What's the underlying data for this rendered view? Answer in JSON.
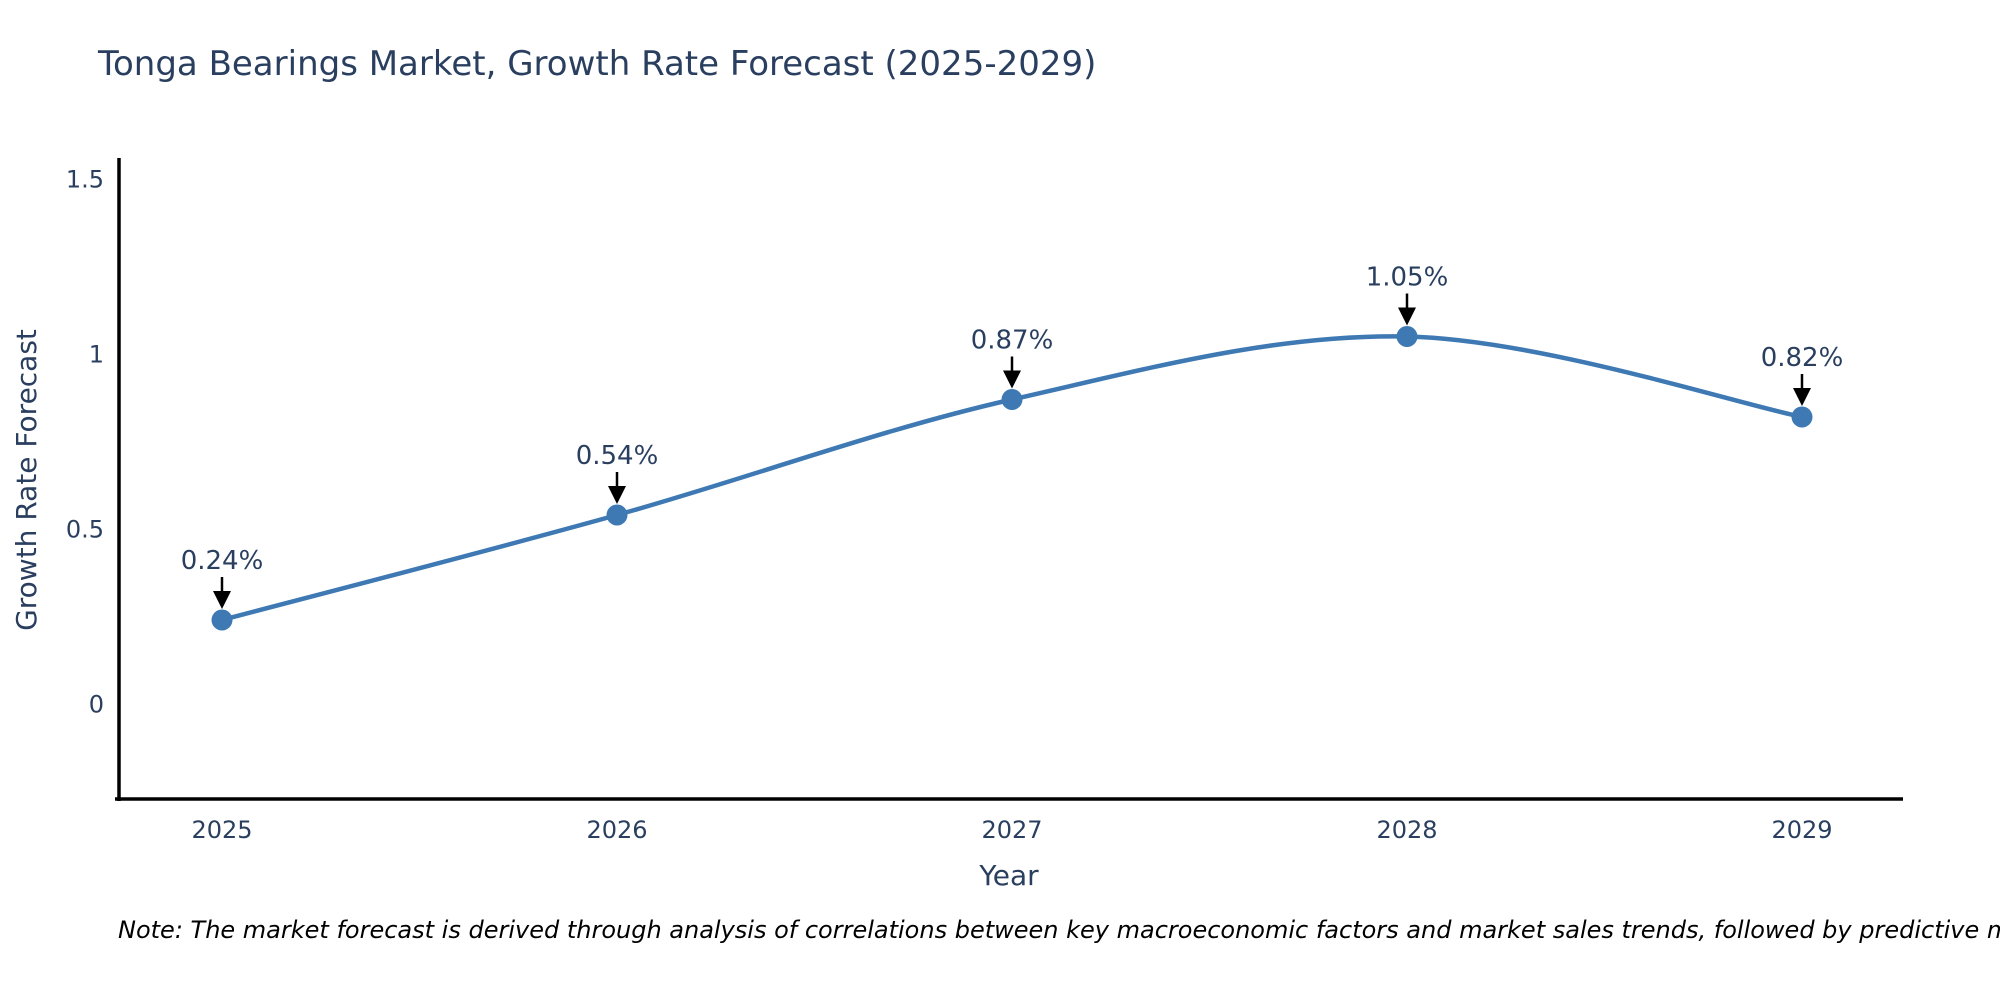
{
  "chart_data": {
    "type": "line",
    "title": "Tonga Bearings Market, Growth Rate Forecast (2025-2029)",
    "xlabel": "Year",
    "ylabel": "Growth Rate Forecast",
    "categories": [
      "2025",
      "2026",
      "2027",
      "2028",
      "2029"
    ],
    "series": [
      {
        "name": "Growth Rate Forecast",
        "values": [
          0.24,
          0.54,
          0.87,
          1.05,
          0.82
        ],
        "point_labels": [
          "0.24%",
          "0.54%",
          "0.87%",
          "1.05%",
          "0.82%"
        ]
      }
    ],
    "ytick_values": [
      0,
      0.5,
      1,
      1.5
    ],
    "ytick_labels": [
      "0",
      "0.5",
      "1",
      "1.5"
    ],
    "ylim": [
      -0.27,
      1.55
    ],
    "grid": false,
    "legend_position": "none",
    "line_shape": "spline",
    "annotations_style": "arrow-down-to-point",
    "colors": {
      "line": "#3e79b4",
      "marker": "#3e79b4",
      "axis_line": "#000000",
      "text": "#2a3f5f",
      "annotation_text": "#2a3f5f",
      "arrow": "#000000",
      "note_text": "#000000",
      "background": "#ffffff"
    }
  },
  "note": "Note: The market forecast is derived through analysis of correlations between key macroeconomic factors and market sales trends, followed by predictive modeling to project future sales"
}
